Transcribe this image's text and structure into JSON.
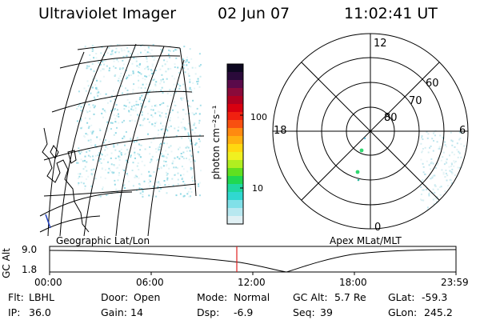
{
  "header": {
    "title": "Ultraviolet Imager",
    "date": "02 Jun 07",
    "time": "11:02:41 UT"
  },
  "colorbar": {
    "label": "photon cm⁻²s⁻¹",
    "ticks": [
      "100",
      "10"
    ],
    "colors": [
      "#0d0820",
      "#2a0a3a",
      "#5a0a4a",
      "#8a0a3a",
      "#b00020",
      "#d80010",
      "#f02010",
      "#f85010",
      "#ff8a10",
      "#ffb010",
      "#ffd810",
      "#f0f020",
      "#b0ee20",
      "#60e020",
      "#20d850",
      "#20d8a0",
      "#30d8d0",
      "#80e0e8",
      "#b8e8f0",
      "#e0f0f4"
    ]
  },
  "polar": {
    "labels": {
      "top": "12",
      "left": "18",
      "right": "6",
      "bottom": "0"
    },
    "rings": [
      "80",
      "70",
      "60"
    ]
  },
  "map_label": "Geographic Lat/Lon",
  "polar_label": "Apex MLat/MLT",
  "alt_plot": {
    "ylabel": "GC Alt",
    "yticks": [
      "9.0",
      "1.8"
    ],
    "xticks": [
      "00:00",
      "06:00",
      "12:00",
      "18:00",
      "23:59"
    ]
  },
  "footer": [
    {
      "label": "Flt:",
      "value": "LBHL"
    },
    {
      "label": "IP:",
      "value": "36.0"
    },
    {
      "label": "Door:",
      "value": "Open"
    },
    {
      "label": "Gain:",
      "value": "14"
    },
    {
      "label": "Mode:",
      "value": "Normal"
    },
    {
      "label": "Dsp:",
      "value": "-6.9"
    },
    {
      "label": "GC Alt:",
      "value": "5.7 Re"
    },
    {
      "label": "Seq:",
      "value": "39"
    },
    {
      "label": "GLat:",
      "value": "-59.3"
    },
    {
      "label": "GLon:",
      "value": "245.2"
    }
  ]
}
